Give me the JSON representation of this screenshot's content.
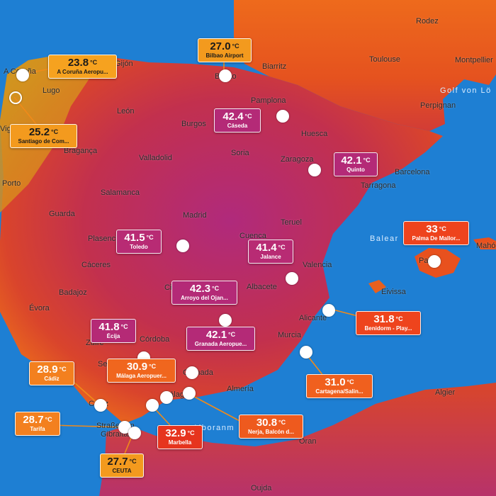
{
  "place_labels": {
    "rodez": "Rodez",
    "toulouse": "Toulouse",
    "montpellier": "Montpellier",
    "perpignan": "Perpignan",
    "biarritz": "Biarritz",
    "bilbao": "Bilbao",
    "gijon": "Gijón",
    "acoruna": "A Coruña",
    "lugo": "Lugo",
    "vigo": "Vigo",
    "leon": "León",
    "burgos": "Burgos",
    "pamplona": "Pamplona",
    "huesca": "Huesca",
    "braganca": "Bragança",
    "valladolid": "Valladolid",
    "soria": "Soria",
    "zaragoza": "Zaragoza",
    "barcelona": "Barcelona",
    "tarragona": "Tarragona",
    "porto": "Porto",
    "salamanca": "Salamanca",
    "guarda": "Guarda",
    "madrid": "Madrid",
    "teruel": "Teruel",
    "cuenca": "Cuenca",
    "plasencia": "Plasencia",
    "caceres": "Cáceres",
    "valencia": "Valencia",
    "palma": "Palma",
    "mahon": "Mahó",
    "albacete": "Albacete",
    "badajoz": "Badajoz",
    "evora": "Évora",
    "ciudadreal": "Ci",
    "eivissa": "Eivissa",
    "alicante": "Alicante",
    "murcia": "Murcia",
    "cordoba": "Córdoba",
    "zufre": "Zufre",
    "sevilla": "Sev",
    "granada": "Granada",
    "almeria": "Almería",
    "malaga": "Málaga",
    "cadiz_town": "Cádiz",
    "algier": "Algier",
    "oran": "Oran",
    "oujda": "Oujda",
    "strait1": "Straße von",
    "strait2": "Gibraltar"
  },
  "water_labels": {
    "golf": "Golf von Lö",
    "balear": "Balear",
    "alboran": "Alboranm"
  },
  "stations": [
    {
      "id": "acoruna",
      "temp": "23.8",
      "unit": "°C",
      "name": "A Coruña Aeropu...",
      "color": "#f6a21f"
    },
    {
      "id": "bilbao",
      "temp": "27.0",
      "unit": "°C",
      "name": "Bilbao Airport",
      "color": "#f39a1e"
    },
    {
      "id": "santiago",
      "temp": "25.2",
      "unit": "°C",
      "name": "Santiago de Com...",
      "color": "#f39a1e"
    },
    {
      "id": "caseda",
      "temp": "42.4",
      "unit": "°C",
      "name": "Cáseda",
      "color": "#b42a77"
    },
    {
      "id": "quinto",
      "temp": "42.1",
      "unit": "°C",
      "name": "Quinto",
      "color": "#b42a77"
    },
    {
      "id": "palma",
      "temp": "33",
      "unit": "°C",
      "name": "Palma De Mallor...",
      "color": "#ee431d"
    },
    {
      "id": "toledo",
      "temp": "41.5",
      "unit": "°C",
      "name": "Toledo",
      "color": "#b82b74"
    },
    {
      "id": "jalance",
      "temp": "41.4",
      "unit": "°C",
      "name": "Jalance",
      "color": "#b82b74"
    },
    {
      "id": "arroyo",
      "temp": "42.3",
      "unit": "°C",
      "name": "Arroyo del Ojan...",
      "color": "#b42a77"
    },
    {
      "id": "benidorm",
      "temp": "31.8",
      "unit": "°C",
      "name": "Benidorm - Play...",
      "color": "#ee441d"
    },
    {
      "id": "ecija",
      "temp": "41.8",
      "unit": "°C",
      "name": "Écija",
      "color": "#b52a76"
    },
    {
      "id": "granada",
      "temp": "42.1",
      "unit": "°C",
      "name": "Granada Aeropue...",
      "color": "#b42a77"
    },
    {
      "id": "cadiz",
      "temp": "28.9",
      "unit": "°C",
      "name": "Cádiz",
      "color": "#f3801f"
    },
    {
      "id": "malaga",
      "temp": "30.9",
      "unit": "°C",
      "name": "Málaga Aeropuer...",
      "color": "#f0661e"
    },
    {
      "id": "cartagena",
      "temp": "31.0",
      "unit": "°C",
      "name": "Cartagena/Salin...",
      "color": "#f0601e"
    },
    {
      "id": "tarifa",
      "temp": "28.7",
      "unit": "°C",
      "name": "Tarifa",
      "color": "#f3801f"
    },
    {
      "id": "nerja",
      "temp": "30.8",
      "unit": "°C",
      "name": "Nerja, Balcón d...",
      "color": "#ee5a1e"
    },
    {
      "id": "marbella",
      "temp": "32.9",
      "unit": "°C",
      "name": "Marbella",
      "color": "#e6341e"
    },
    {
      "id": "ceuta",
      "temp": "27.7",
      "unit": "°C",
      "name": "CEUTA",
      "color": "#f39a1e"
    }
  ]
}
